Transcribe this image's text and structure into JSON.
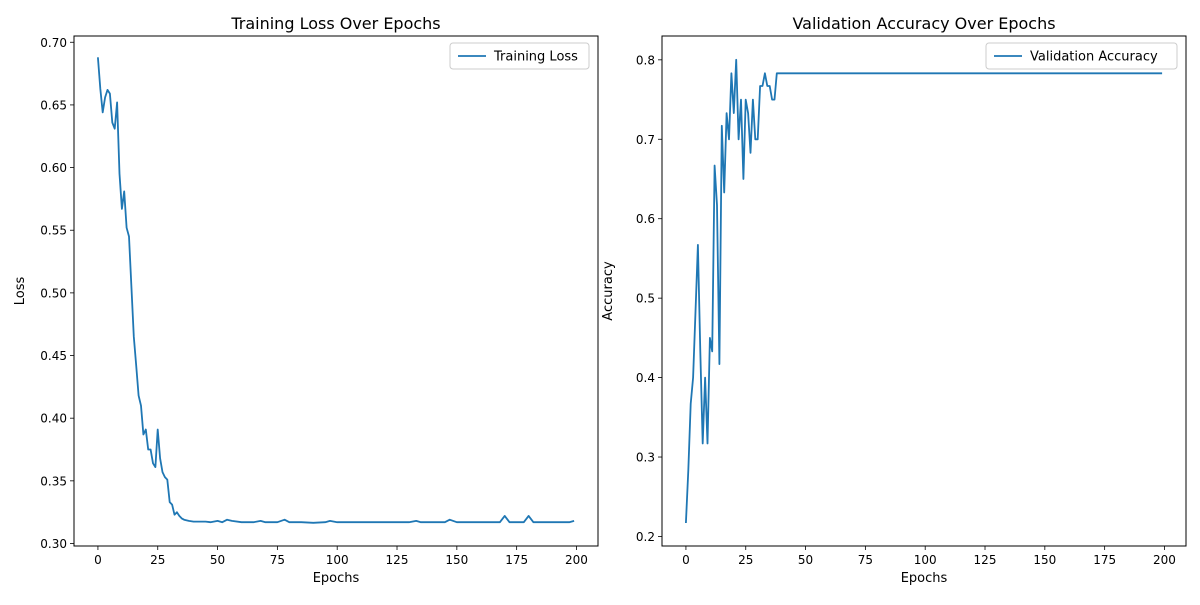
{
  "chart_data": [
    {
      "type": "line",
      "title": "Training Loss Over Epochs",
      "xlabel": "Epochs",
      "ylabel": "Loss",
      "xlim": [
        -10,
        209
      ],
      "ylim": [
        0.298,
        0.705
      ],
      "xticks": [
        "0",
        "25",
        "50",
        "75",
        "100",
        "125",
        "150",
        "175",
        "200"
      ],
      "yticks": [
        "0.30",
        "0.35",
        "0.40",
        "0.45",
        "0.50",
        "0.55",
        "0.60",
        "0.65",
        "0.70"
      ],
      "grid": false,
      "legend": "top-right",
      "series": [
        {
          "name": "Training Loss",
          "color": "#1f77b4",
          "x": [
            0,
            1,
            2,
            3,
            4,
            5,
            6,
            7,
            8,
            9,
            10,
            11,
            12,
            13,
            14,
            15,
            16,
            17,
            18,
            19,
            20,
            21,
            22,
            23,
            24,
            25,
            26,
            27,
            28,
            29,
            30,
            31,
            32,
            33,
            34,
            35,
            36,
            38,
            40,
            45,
            47,
            50,
            52,
            54,
            56,
            60,
            65,
            68,
            70,
            75,
            78,
            80,
            85,
            90,
            95,
            97,
            100,
            105,
            110,
            115,
            120,
            125,
            130,
            133,
            135,
            140,
            145,
            147,
            150,
            155,
            160,
            165,
            168,
            170,
            172,
            175,
            178,
            180,
            182,
            185,
            190,
            195,
            197,
            199
          ],
          "y": [
            0.688,
            0.663,
            0.644,
            0.656,
            0.662,
            0.659,
            0.636,
            0.631,
            0.652,
            0.595,
            0.567,
            0.581,
            0.552,
            0.545,
            0.505,
            0.465,
            0.442,
            0.418,
            0.41,
            0.387,
            0.391,
            0.375,
            0.375,
            0.364,
            0.361,
            0.391,
            0.368,
            0.357,
            0.353,
            0.351,
            0.333,
            0.331,
            0.323,
            0.325,
            0.322,
            0.32,
            0.319,
            0.318,
            0.3175,
            0.3175,
            0.317,
            0.318,
            0.317,
            0.319,
            0.318,
            0.317,
            0.317,
            0.318,
            0.317,
            0.317,
            0.319,
            0.317,
            0.317,
            0.3165,
            0.317,
            0.318,
            0.317,
            0.317,
            0.317,
            0.317,
            0.317,
            0.317,
            0.317,
            0.318,
            0.317,
            0.317,
            0.317,
            0.319,
            0.317,
            0.317,
            0.317,
            0.317,
            0.317,
            0.322,
            0.317,
            0.317,
            0.317,
            0.322,
            0.317,
            0.317,
            0.317,
            0.317,
            0.317,
            0.318
          ]
        }
      ]
    },
    {
      "type": "line",
      "title": "Validation Accuracy Over Epochs",
      "xlabel": "Epochs",
      "ylabel": "Accuracy",
      "xlim": [
        -10,
        209
      ],
      "ylim": [
        0.188,
        0.83
      ],
      "xticks": [
        "0",
        "25",
        "50",
        "75",
        "100",
        "125",
        "150",
        "175",
        "200"
      ],
      "yticks": [
        "0.2",
        "0.3",
        "0.4",
        "0.5",
        "0.6",
        "0.7",
        "0.8"
      ],
      "grid": false,
      "legend": "top-right",
      "series": [
        {
          "name": "Validation Accuracy",
          "color": "#1f77b4",
          "x": [
            0,
            1,
            2,
            3,
            4,
            5,
            6,
            7,
            8,
            9,
            10,
            11,
            12,
            13,
            14,
            15,
            16,
            17,
            18,
            19,
            20,
            21,
            22,
            23,
            24,
            25,
            26,
            27,
            28,
            29,
            30,
            31,
            32,
            33,
            34,
            35,
            36,
            37,
            38,
            39,
            40,
            199
          ],
          "y": [
            0.217,
            0.283,
            0.367,
            0.4,
            0.483,
            0.567,
            0.433,
            0.317,
            0.4,
            0.317,
            0.45,
            0.433,
            0.667,
            0.617,
            0.417,
            0.717,
            0.633,
            0.733,
            0.7,
            0.783,
            0.733,
            0.8,
            0.7,
            0.75,
            0.65,
            0.75,
            0.733,
            0.683,
            0.75,
            0.7,
            0.7,
            0.767,
            0.767,
            0.783,
            0.767,
            0.767,
            0.75,
            0.75,
            0.783,
            0.783,
            0.783,
            0.783
          ]
        }
      ]
    }
  ]
}
